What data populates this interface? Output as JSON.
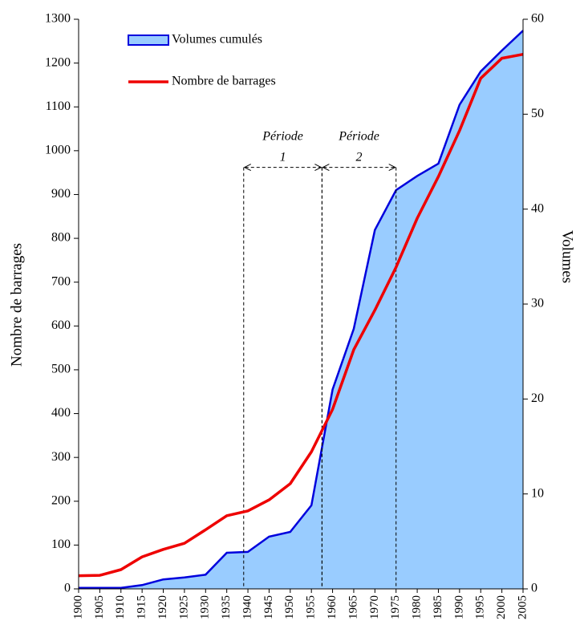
{
  "chart_data": {
    "type": "area-line",
    "ylabel": "Nombre de barrages",
    "y2label": "Volumes",
    "x": [
      1900,
      1905,
      1910,
      1915,
      1920,
      1925,
      1930,
      1935,
      1940,
      1945,
      1950,
      1955,
      1960,
      1965,
      1970,
      1975,
      1980,
      1985,
      1990,
      1995,
      2000,
      2005
    ],
    "xlim": [
      1900,
      2005
    ],
    "xticks": [
      1900,
      1905,
      1910,
      1915,
      1920,
      1925,
      1930,
      1935,
      1940,
      1945,
      1950,
      1955,
      1960,
      1965,
      1970,
      1975,
      1980,
      1985,
      1990,
      1995,
      2000,
      2005
    ],
    "ylim": [
      0,
      1300
    ],
    "yticks": [
      0,
      100,
      200,
      300,
      400,
      500,
      600,
      700,
      800,
      900,
      1000,
      1100,
      1200,
      1300
    ],
    "y2lim": [
      0,
      60
    ],
    "y2ticks": [
      0,
      10,
      20,
      30,
      40,
      50,
      60
    ],
    "legend": "top-left",
    "series": [
      {
        "name": "Volumes cumulés",
        "type": "area",
        "axis": "y2",
        "color": "#0000dd",
        "fill": "#99ccff",
        "values": [
          0.1,
          0.1,
          0.1,
          0.4,
          1.0,
          1.2,
          1.5,
          3.8,
          3.9,
          5.5,
          6.0,
          8.8,
          21,
          27.4,
          37.8,
          42.0,
          43.5,
          44.8,
          51.0,
          54.5,
          56.7,
          58.8
        ]
      },
      {
        "name": "Nombre de barrages",
        "type": "line",
        "axis": "y",
        "color": "#ee0000",
        "values": [
          30,
          31,
          44,
          73,
          90,
          104,
          135,
          167,
          178,
          203,
          240,
          313,
          410,
          546,
          636,
          734,
          846,
          941,
          1046,
          1165,
          1211,
          1220
        ]
      }
    ],
    "periods": [
      {
        "label": [
          "Période",
          "1"
        ],
        "x": [
          1939,
          1957.5
        ],
        "y": 962
      },
      {
        "label": [
          "Période",
          "2"
        ],
        "x": [
          1957.5,
          1975
        ],
        "y": 962
      }
    ]
  }
}
